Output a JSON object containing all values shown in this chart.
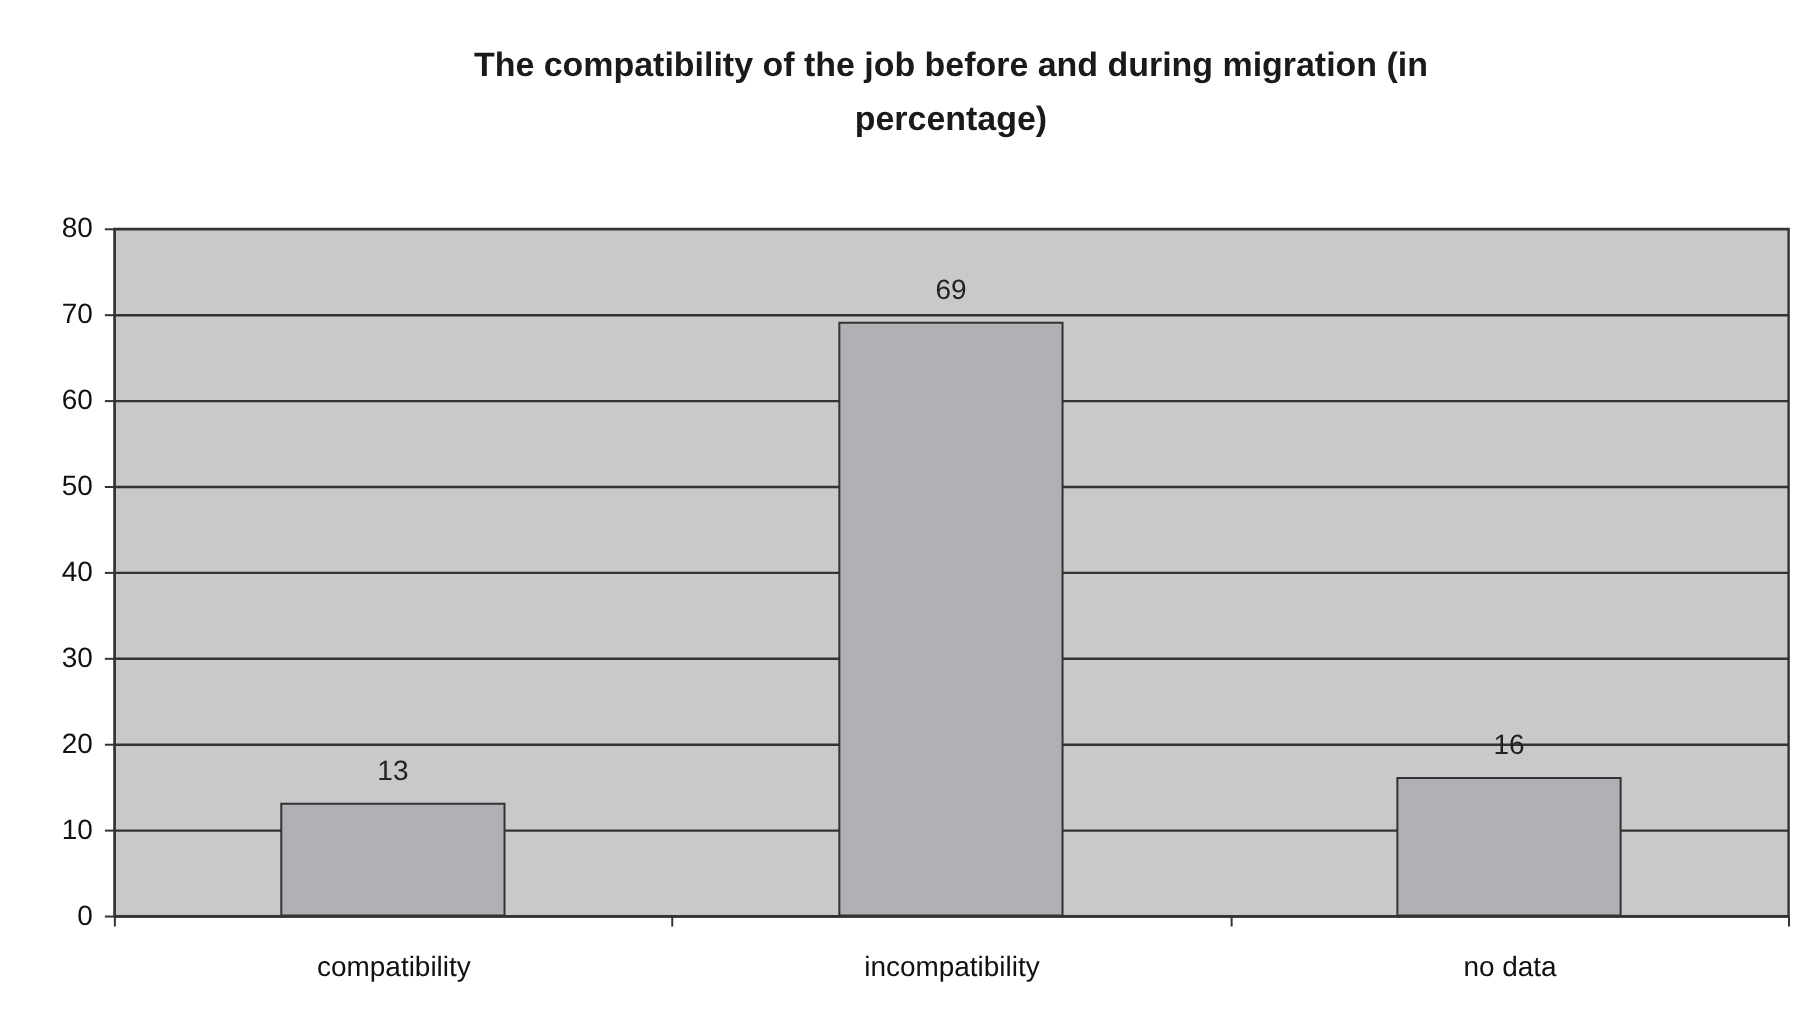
{
  "chart_data": {
    "type": "bar",
    "title": "The compatibility of the job before and during migration (in percentage)",
    "categories": [
      "compatibility",
      "incompatibility",
      "no data"
    ],
    "values": [
      13,
      69,
      16
    ],
    "color": "#b0b1b5",
    "ylim": [
      0,
      80
    ],
    "yticks": [
      0,
      10,
      20,
      30,
      40,
      50,
      60,
      70,
      80
    ],
    "grid": "y",
    "data_labels": true
  }
}
